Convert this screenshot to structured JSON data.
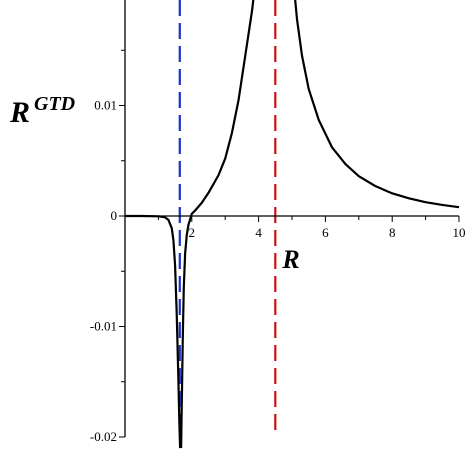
{
  "chart_data": {
    "type": "line",
    "xlabel": "R",
    "ylabel": {
      "main": "R",
      "sup": "GTD"
    },
    "xlim": [
      0,
      10
    ],
    "ylim": [
      -0.02,
      0.02
    ],
    "x_ticks": [
      {
        "value": 2,
        "label": "2"
      },
      {
        "value": 4,
        "label": "4"
      },
      {
        "value": 6,
        "label": "6"
      },
      {
        "value": 8,
        "label": "8"
      },
      {
        "value": 10,
        "label": "10"
      }
    ],
    "y_ticks": [
      {
        "value": 0.01,
        "label": "0.01"
      },
      {
        "value": 0,
        "label": "0"
      },
      {
        "value": -0.01,
        "label": "-0.01"
      },
      {
        "value": -0.02,
        "label": "-0.02"
      }
    ],
    "grid": false,
    "series": [
      {
        "color": "#000000",
        "style": "solid",
        "segments": [
          {
            "x": [
              0,
              0.5,
              1.0,
              1.2,
              1.3,
              1.4,
              1.45,
              1.5,
              1.55,
              1.6,
              1.63,
              1.65
            ],
            "y": [
              0,
              0,
              -3e-05,
              -0.00012,
              -0.00035,
              -0.0011,
              -0.0022,
              -0.0045,
              -0.009,
              -0.015,
              -0.019,
              -0.021
            ]
          },
          {
            "x": [
              1.68,
              1.7,
              1.73,
              1.76,
              1.8,
              1.85,
              1.9,
              2.0,
              2.1,
              2.3,
              2.5,
              2.8,
              3.0,
              3.2,
              3.4,
              3.6,
              3.8,
              3.9,
              3.95
            ],
            "y": [
              -0.021,
              -0.017,
              -0.011,
              -0.0065,
              -0.0034,
              -0.0017,
              -0.0008,
              0.0002,
              0.0005,
              0.0012,
              0.0021,
              0.0037,
              0.0052,
              0.0075,
              0.0105,
              0.0145,
              0.0185,
              0.021,
              0.0225
            ]
          },
          {
            "x": [
              5.0,
              5.05,
              5.15,
              5.3,
              5.5,
              5.8,
              6.2,
              6.6,
              7.0,
              7.5,
              8.0,
              8.5,
              9.0,
              9.5,
              10.0
            ],
            "y": [
              0.0225,
              0.021,
              0.0178,
              0.0145,
              0.0115,
              0.0087,
              0.0062,
              0.0047,
              0.0036,
              0.0027,
              0.00205,
              0.0016,
              0.00125,
              0.001,
              0.0008
            ]
          }
        ]
      }
    ],
    "asymptotes": [
      {
        "x": 1.64,
        "color": "#1a2fcc",
        "style": "dashed"
      },
      {
        "x": 4.5,
        "color": "#cc1111",
        "style": "dashed"
      }
    ]
  }
}
